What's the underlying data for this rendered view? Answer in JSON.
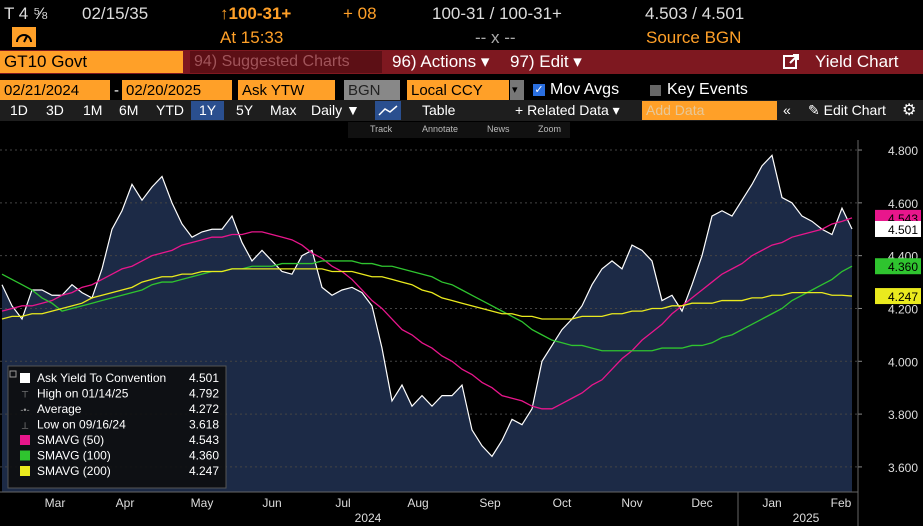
{
  "header": {
    "ticker": "T 4 ⅝",
    "maturity": "02/15/35",
    "change_price": "↑100-31+",
    "change": "+ 08",
    "bid_ask_price": "100-31 / 100-31+",
    "bid_ask_yield": "4.503 / 4.501",
    "time": "At 15:33",
    "mid": "-- x --",
    "source": "Source BGN"
  },
  "toolbar": {
    "security_field": "GT10 Govt",
    "menu": [
      "94) Suggested Charts",
      "96) Actions ▾",
      "97) Edit ▾"
    ],
    "function": "Yield Chart"
  },
  "controls": {
    "start": "02/21/2024",
    "dash": "-",
    "end": "02/20/2025",
    "field": "Ask YTW",
    "source": "BGN",
    "currency": "Local CCY",
    "mov_avgs": "Mov Avgs",
    "key_events": "Key Events"
  },
  "periods": [
    "1D",
    "3D",
    "1M",
    "6M",
    "YTD",
    "1Y",
    "5Y",
    "Max"
  ],
  "selected_period_index": 5,
  "frequency": "Daily ▼",
  "table": "Table",
  "related": "+ Related Data ▾",
  "add_data": "Add Data",
  "edit_chart": "Edit Chart",
  "tools": [
    "Track",
    "Annotate",
    "News",
    "Zoom"
  ],
  "chart_data": {
    "type": "line",
    "area_under_first": true,
    "xtick_labels": [
      "Mar",
      "Apr",
      "May",
      "Jun",
      "Jul",
      "Aug",
      "Sep",
      "Oct",
      "Nov",
      "Dec",
      "Jan",
      "Feb"
    ],
    "year_labels": [
      "2024",
      "2025"
    ],
    "ylim": [
      3.505,
      4.838
    ],
    "yticks": [
      {
        "value": 3.6,
        "label": "3.600"
      },
      {
        "value": 3.8,
        "label": "3.800"
      },
      {
        "value": 4.0,
        "label": "4.000"
      },
      {
        "value": 4.2,
        "label": "4.200"
      },
      {
        "value": 4.4,
        "label": "4.400"
      },
      {
        "value": 4.6,
        "label": "4.600"
      },
      {
        "value": 4.8,
        "label": "4.800"
      }
    ],
    "grid": true,
    "series": [
      {
        "name": "Ask Yield To Convention",
        "color": "#ffffff",
        "last": "4.501",
        "values": [
          4.29,
          4.21,
          4.16,
          4.27,
          4.27,
          4.25,
          4.25,
          4.29,
          4.26,
          4.24,
          4.35,
          4.5,
          4.57,
          4.67,
          4.61,
          4.66,
          4.7,
          4.6,
          4.52,
          4.47,
          4.49,
          4.5,
          4.5,
          4.55,
          4.45,
          4.38,
          4.42,
          4.38,
          4.34,
          4.33,
          4.4,
          4.42,
          4.28,
          4.25,
          4.27,
          4.28,
          4.26,
          4.21,
          4.05,
          3.85,
          3.91,
          3.83,
          3.87,
          3.83,
          3.87,
          3.87,
          3.91,
          3.74,
          3.68,
          3.64,
          3.7,
          3.78,
          3.76,
          3.82,
          4.0,
          4.06,
          4.12,
          4.16,
          4.21,
          4.29,
          4.35,
          4.38,
          4.35,
          4.44,
          4.42,
          4.38,
          4.23,
          4.25,
          4.19,
          4.29,
          4.4,
          4.55,
          4.57,
          4.55,
          4.61,
          4.67,
          4.74,
          4.78,
          4.62,
          4.6,
          4.55,
          4.53,
          4.5,
          4.48,
          4.58,
          4.501
        ]
      },
      {
        "name": "SMAVG (50)",
        "color": "#e8168c",
        "last": "4.543",
        "values": [
          4.19,
          4.2,
          4.21,
          4.21,
          4.22,
          4.23,
          4.25,
          4.26,
          4.28,
          4.29,
          4.31,
          4.33,
          4.35,
          4.36,
          4.38,
          4.4,
          4.41,
          4.42,
          4.44,
          4.45,
          4.46,
          4.47,
          4.47,
          4.48,
          4.48,
          4.49,
          4.49,
          4.48,
          4.47,
          4.46,
          4.44,
          4.41,
          4.39,
          4.36,
          4.34,
          4.31,
          4.27,
          4.23,
          4.2,
          4.16,
          4.12,
          4.1,
          4.07,
          4.05,
          4.02,
          4.0,
          3.97,
          3.95,
          3.92,
          3.9,
          3.87,
          3.86,
          3.85,
          3.83,
          3.82,
          3.82,
          3.84,
          3.86,
          3.88,
          3.91,
          3.93,
          3.97,
          4.01,
          4.04,
          4.08,
          4.11,
          4.14,
          4.18,
          4.21,
          4.24,
          4.27,
          4.3,
          4.33,
          4.35,
          4.37,
          4.4,
          4.42,
          4.44,
          4.45,
          4.47,
          4.48,
          4.49,
          4.5,
          4.52,
          4.53,
          4.543
        ]
      },
      {
        "name": "SMAVG (100)",
        "color": "#2fc42f",
        "last": "4.360",
        "values": [
          4.33,
          4.31,
          4.29,
          4.27,
          4.24,
          4.22,
          4.19,
          4.2,
          4.21,
          4.22,
          4.23,
          4.24,
          4.25,
          4.26,
          4.27,
          4.29,
          4.3,
          4.3,
          4.31,
          4.32,
          4.33,
          4.34,
          4.34,
          4.35,
          4.35,
          4.36,
          4.36,
          4.36,
          4.37,
          4.37,
          4.37,
          4.37,
          4.38,
          4.38,
          4.38,
          4.38,
          4.37,
          4.37,
          4.36,
          4.36,
          4.35,
          4.34,
          4.33,
          4.32,
          4.3,
          4.29,
          4.27,
          4.25,
          4.23,
          4.21,
          4.19,
          4.17,
          4.15,
          4.12,
          4.1,
          4.08,
          4.07,
          4.06,
          4.06,
          4.05,
          4.04,
          4.04,
          4.04,
          4.04,
          4.04,
          4.04,
          4.05,
          4.05,
          4.05,
          4.06,
          4.06,
          4.07,
          4.09,
          4.1,
          4.12,
          4.14,
          4.16,
          4.18,
          4.2,
          4.23,
          4.25,
          4.27,
          4.29,
          4.31,
          4.34,
          4.36
        ]
      },
      {
        "name": "SMAVG (200)",
        "color": "#eaea1e",
        "last": "4.247",
        "values": [
          4.16,
          4.17,
          4.17,
          4.18,
          4.18,
          4.19,
          4.2,
          4.21,
          4.22,
          4.24,
          4.25,
          4.26,
          4.27,
          4.28,
          4.3,
          4.31,
          4.32,
          4.32,
          4.33,
          4.33,
          4.34,
          4.34,
          4.34,
          4.35,
          4.35,
          4.35,
          4.35,
          4.35,
          4.35,
          4.35,
          4.35,
          4.35,
          4.35,
          4.34,
          4.34,
          4.34,
          4.33,
          4.32,
          4.32,
          4.31,
          4.3,
          4.29,
          4.27,
          4.26,
          4.24,
          4.23,
          4.22,
          4.21,
          4.2,
          4.19,
          4.18,
          4.18,
          4.17,
          4.17,
          4.16,
          4.16,
          4.16,
          4.16,
          4.17,
          4.17,
          4.17,
          4.18,
          4.18,
          4.19,
          4.19,
          4.2,
          4.2,
          4.21,
          4.21,
          4.22,
          4.22,
          4.22,
          4.23,
          4.23,
          4.23,
          4.24,
          4.24,
          4.25,
          4.25,
          4.26,
          4.26,
          4.26,
          4.26,
          4.25,
          4.25,
          4.247
        ]
      }
    ],
    "stats": [
      {
        "label": "High on 01/14/25",
        "value": "4.792"
      },
      {
        "label": "Average",
        "value": "4.272"
      },
      {
        "label": "Low on 09/16/24",
        "value": "3.618"
      }
    ]
  }
}
